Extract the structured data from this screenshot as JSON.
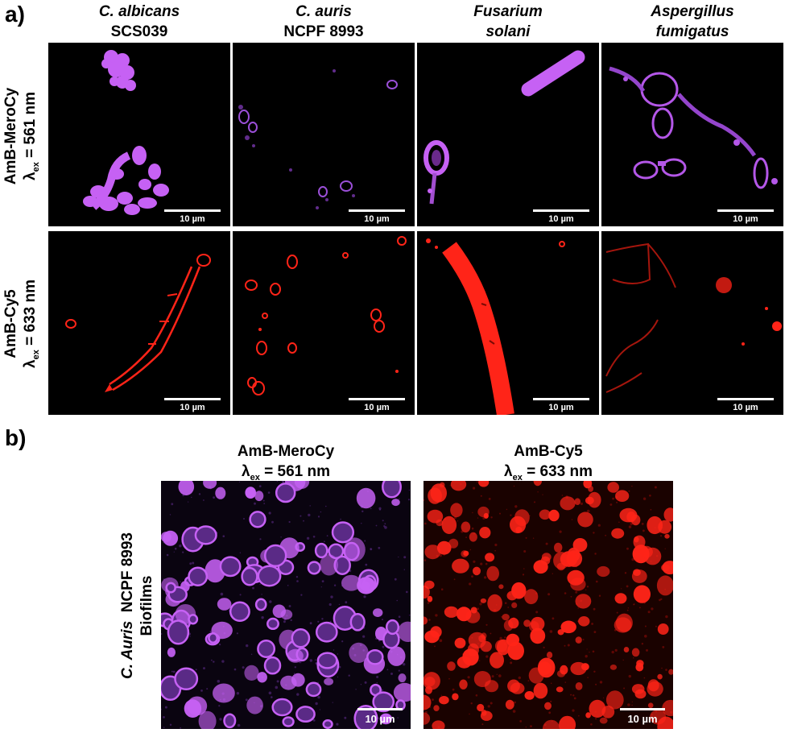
{
  "panel_a_label": "a)",
  "panel_b_label": "b)",
  "columns": [
    {
      "italic": "C. albicans",
      "plain": "SCS039"
    },
    {
      "italic": "C. auris",
      "plain": "NCPF 8993"
    },
    {
      "italic": "Fusarium",
      "plain": "solani"
    },
    {
      "italic": "Aspergillus",
      "plain": "fumigatus"
    }
  ],
  "rows": [
    {
      "probe": "AmB-MeroCy",
      "lambda": "λ",
      "sub": "ex",
      "wavelength": "= 561 nm",
      "color": "#c661f4"
    },
    {
      "probe": "AmB-Cy5",
      "lambda": "λ",
      "sub": "ex",
      "wavelength": "= 633 nm",
      "color": "#ff2418"
    }
  ],
  "scale_label": "10 µm",
  "biofilm": {
    "heads": [
      {
        "probe": "AmB-MeroCy",
        "lambda": "λ",
        "sub": "ex",
        "wavelength": "= 561 nm"
      },
      {
        "probe": "AmB-Cy5",
        "lambda": "λ",
        "sub": "ex",
        "wavelength": "= 633 nm"
      }
    ],
    "side_italic": "C. Auris",
    "side_plain": "NCPF 8993",
    "side_line2": "Biofilms",
    "scale_label": "10 µm"
  }
}
